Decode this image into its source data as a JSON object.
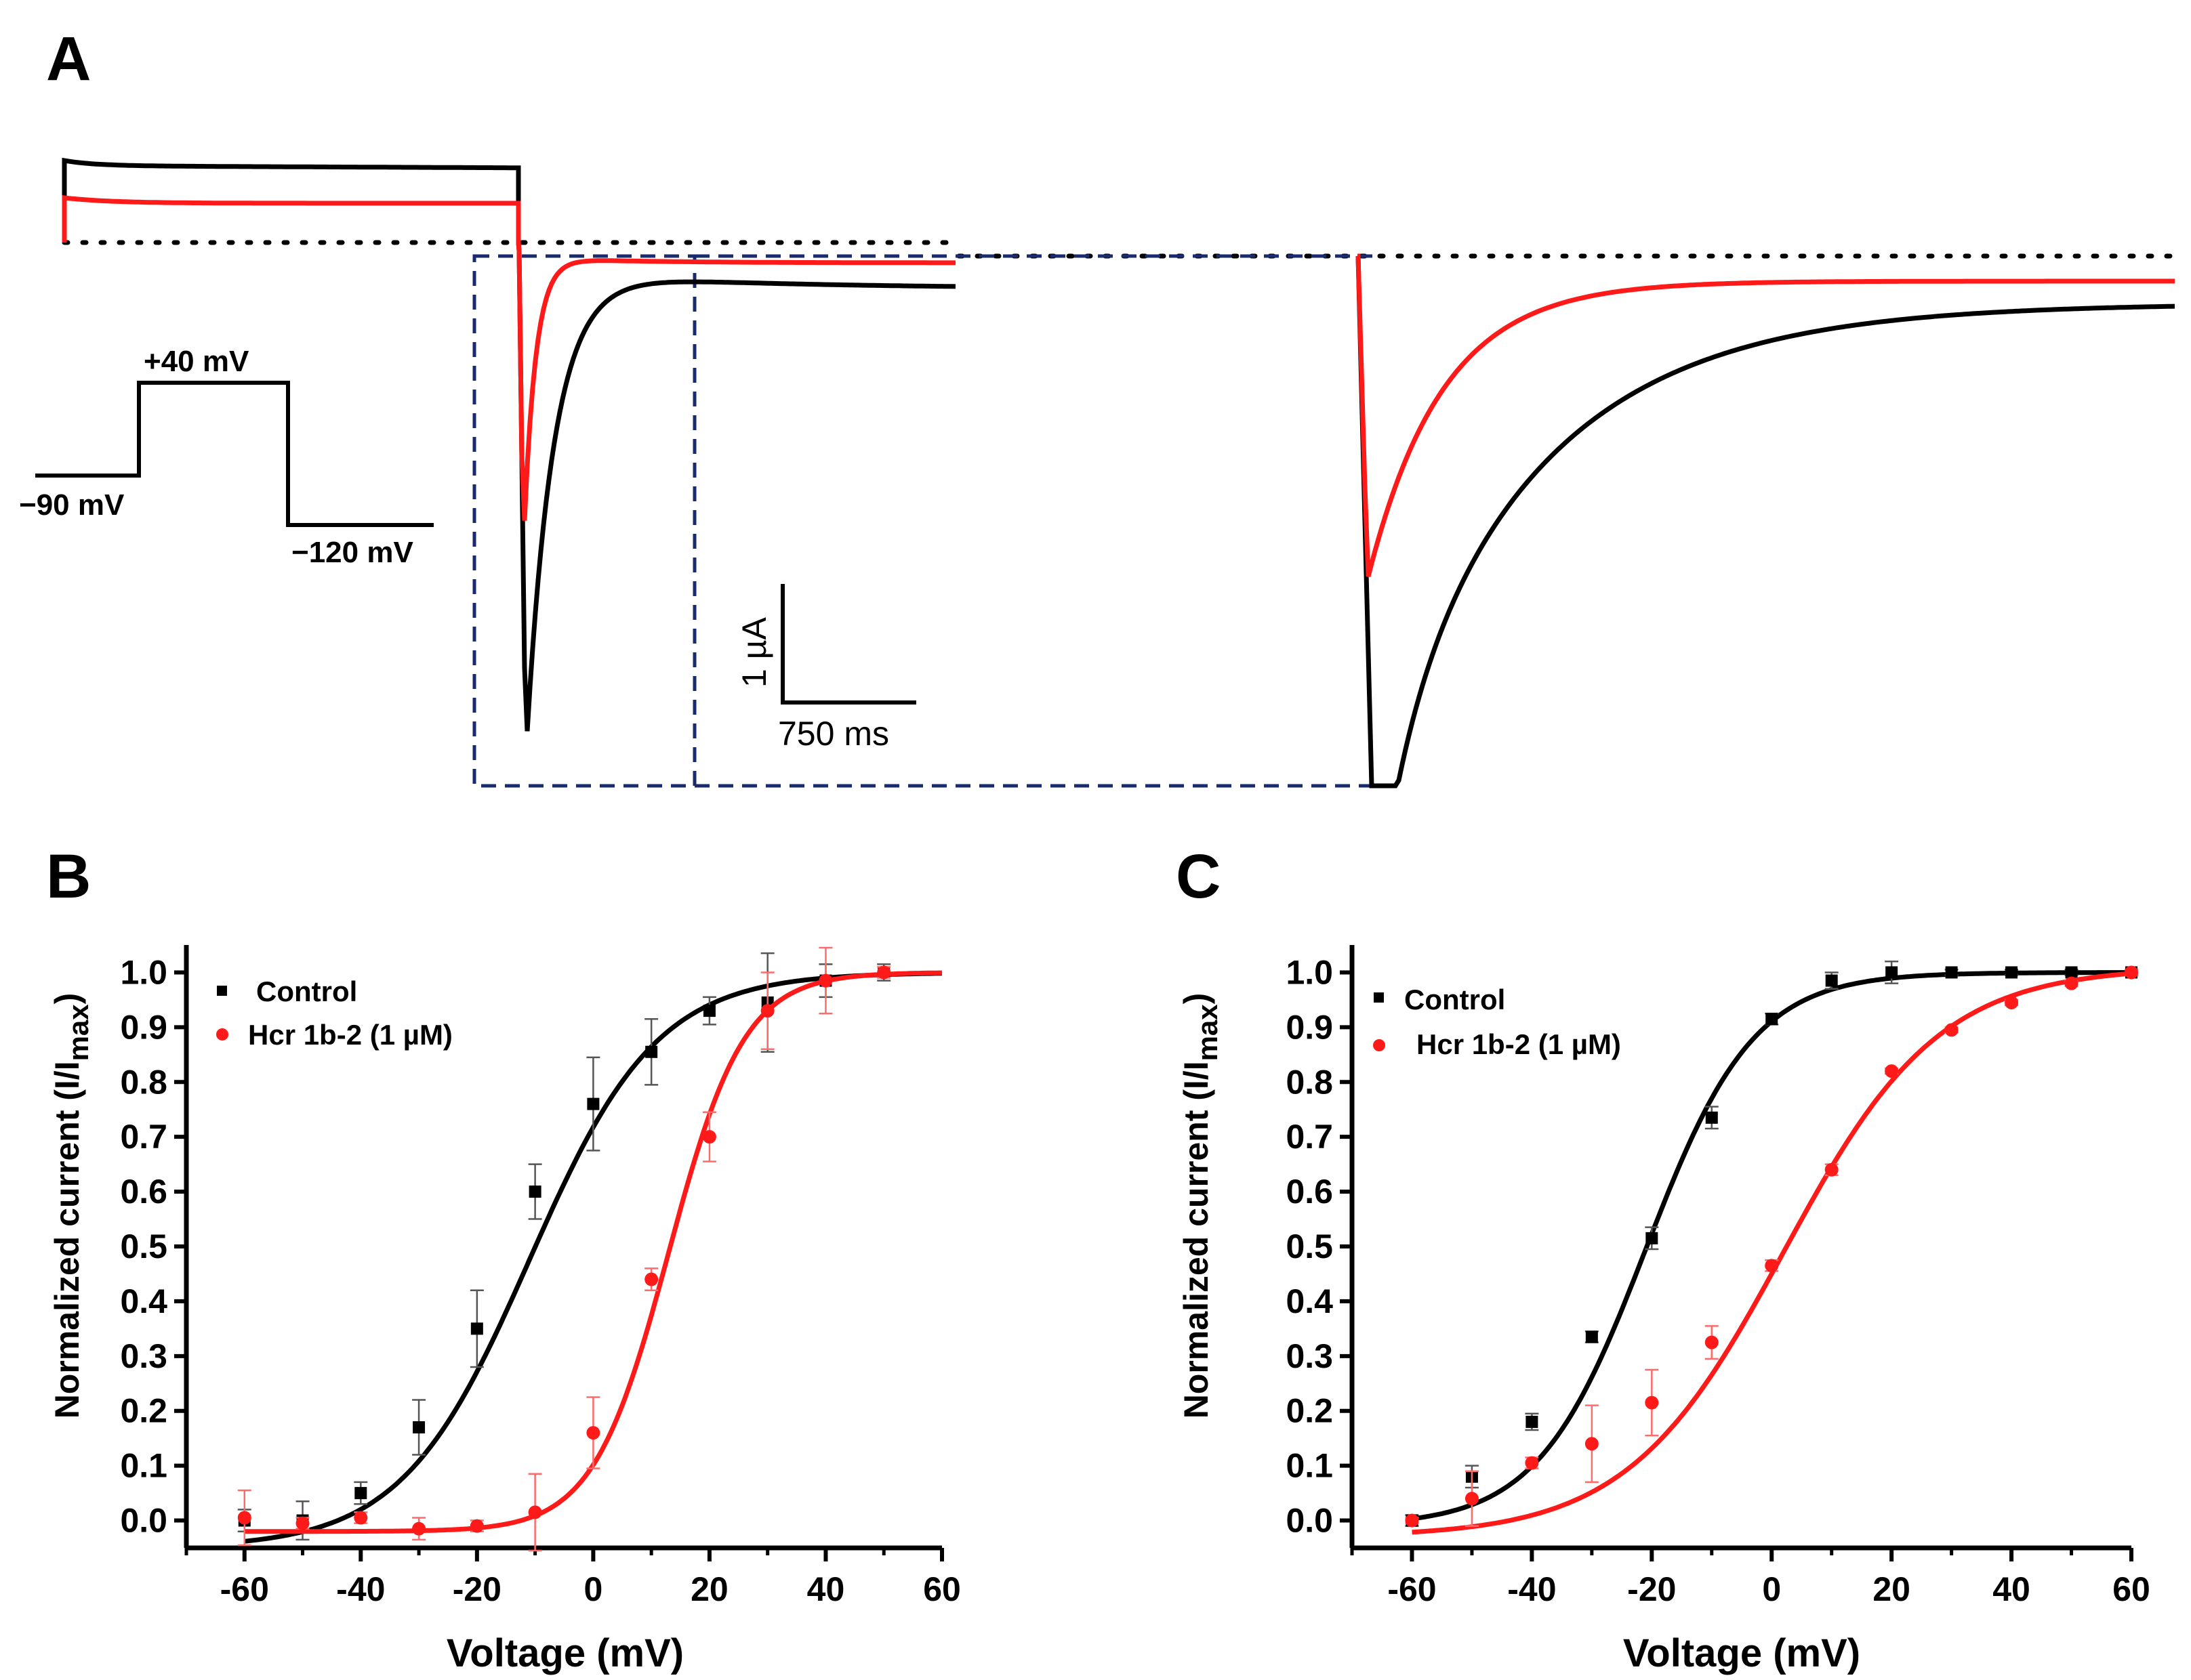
{
  "colors": {
    "control": "#000000",
    "toxin": "#ff1a1a",
    "box": "#1a2a6e"
  },
  "panel_a": {
    "label": "A",
    "protocol": {
      "hold": "−90 mV",
      "step": "+40 mV",
      "tail": "−120 mV"
    },
    "scale": {
      "current": "1 µA",
      "time": "750 ms"
    }
  },
  "chart_data": [
    {
      "id": "B",
      "label": "B",
      "type": "scatter",
      "xlabel": "Voltage (mV)",
      "ylabel": "Normalized current (I/I",
      "ylabel_sub": "max",
      "ylabel_close": ")",
      "xlim": [
        -70,
        60
      ],
      "ylim": [
        -0.05,
        1.05
      ],
      "xticks": [
        -60,
        -40,
        -20,
        0,
        20,
        40,
        60
      ],
      "yticks": [
        0.0,
        0.1,
        0.2,
        0.3,
        0.4,
        0.5,
        0.6,
        0.7,
        0.8,
        0.9,
        1.0
      ],
      "legend_position": "top-left",
      "series": [
        {
          "name": "Control",
          "marker": "square",
          "color": "#000000",
          "x": [
            -60,
            -50,
            -40,
            -30,
            -20,
            -10,
            0,
            10,
            20,
            30,
            40,
            50
          ],
          "y": [
            0.0,
            0.0,
            0.05,
            0.17,
            0.35,
            0.6,
            0.76,
            0.855,
            0.93,
            0.945,
            0.985,
            1.0
          ],
          "err": [
            0.02,
            0.035,
            0.02,
            0.05,
            0.07,
            0.05,
            0.085,
            0.06,
            0.025,
            0.09,
            0.03,
            0.015
          ],
          "fit": {
            "v_half": -11,
            "slope": 11,
            "bottom": -0.05,
            "top": 1.0
          }
        },
        {
          "name": "Hcr 1b-2 (1 µM)",
          "marker": "circle",
          "color": "#ff1a1a",
          "x": [
            -60,
            -50,
            -40,
            -30,
            -20,
            -10,
            0,
            10,
            20,
            30,
            40,
            50
          ],
          "y": [
            0.005,
            -0.005,
            0.005,
            -0.015,
            -0.01,
            0.015,
            0.16,
            0.44,
            0.7,
            0.93,
            0.985,
            1.0
          ],
          "err": [
            0.05,
            0.01,
            0.01,
            0.02,
            0.01,
            0.07,
            0.065,
            0.02,
            0.045,
            0.07,
            0.06,
            0.01
          ],
          "fit": {
            "v_half": 13,
            "slope": 6.5,
            "bottom": -0.02,
            "top": 1.0
          }
        }
      ]
    },
    {
      "id": "C",
      "label": "C",
      "type": "scatter",
      "xlabel": "Voltage (mV)",
      "ylabel": "Normalized current (I/I",
      "ylabel_sub": "max",
      "ylabel_close": ")",
      "xlim": [
        -70,
        60
      ],
      "ylim": [
        -0.05,
        1.05
      ],
      "xticks": [
        -60,
        -40,
        -20,
        0,
        20,
        40,
        60
      ],
      "yticks": [
        0.0,
        0.1,
        0.2,
        0.3,
        0.4,
        0.5,
        0.6,
        0.7,
        0.8,
        0.9,
        1.0
      ],
      "legend_position": "top-left",
      "series": [
        {
          "name": "Control",
          "marker": "square",
          "color": "#000000",
          "x": [
            -60,
            -50,
            -40,
            -30,
            -20,
            -10,
            0,
            10,
            20,
            30,
            40,
            50,
            60
          ],
          "y": [
            0.0,
            0.08,
            0.18,
            0.335,
            0.515,
            0.735,
            0.915,
            0.985,
            1.0,
            1.0,
            1.0,
            1.0,
            1.0
          ],
          "err": [
            0.01,
            0.02,
            0.015,
            0.01,
            0.02,
            0.02,
            0.01,
            0.015,
            0.02,
            0.005,
            0.005,
            0.005,
            0.005
          ],
          "fit": {
            "v_half": -21,
            "slope": 9,
            "bottom": -0.01,
            "top": 1.0
          }
        },
        {
          "name": "Hcr 1b-2 (1 µM)",
          "marker": "circle",
          "color": "#ff1a1a",
          "x": [
            -60,
            -50,
            -40,
            -30,
            -20,
            -10,
            0,
            10,
            20,
            30,
            40,
            50,
            60
          ],
          "y": [
            0.0,
            0.04,
            0.105,
            0.14,
            0.215,
            0.325,
            0.465,
            0.64,
            0.82,
            0.895,
            0.945,
            0.98,
            1.0
          ],
          "err": [
            0.005,
            0.05,
            0.01,
            0.07,
            0.06,
            0.03,
            0.01,
            0.01,
            0.005,
            0.005,
            0.005,
            0.005,
            0.005
          ],
          "fit": {
            "v_half": 2,
            "slope": 13,
            "bottom": -0.03,
            "top": 1.01
          }
        }
      ]
    }
  ]
}
